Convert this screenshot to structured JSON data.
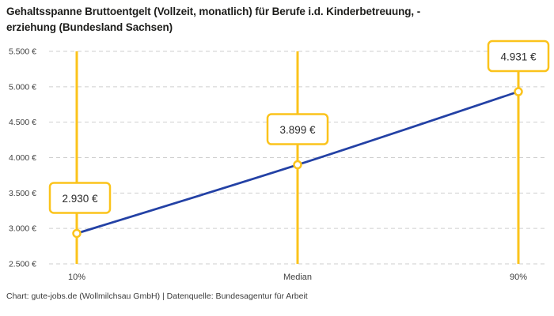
{
  "title": "Gehaltsspanne Bruttoentgelt (Vollzeit, monatlich) für Berufe i.d. Kinderbetreuung, -\nerziehung (Bundesland Sachsen)",
  "footer": "Chart: gute-jobs.de (Wollmilchsau GmbH) | Datenquelle: Bundesagentur für Arbeit",
  "chart_data": {
    "type": "line",
    "categories": [
      "10%",
      "Median",
      "90%"
    ],
    "values": [
      2930,
      3899,
      4931
    ],
    "value_labels": [
      "2.930 €",
      "3.899 €",
      "4.931 €"
    ],
    "title": "Gehaltsspanne Bruttoentgelt (Vollzeit, monatlich) für Berufe i.d. Kinderbetreuung, -erziehung (Bundesland Sachsen)",
    "xlabel": "",
    "ylabel": "",
    "ylim": [
      2500,
      5500
    ],
    "y_ticks": [
      {
        "value": 2500,
        "label": "2.500 €"
      },
      {
        "value": 3000,
        "label": "3.000 €"
      },
      {
        "value": 3500,
        "label": "3.500 €"
      },
      {
        "value": 4000,
        "label": "4.000 €"
      },
      {
        "value": 4500,
        "label": "4.500 €"
      },
      {
        "value": 5000,
        "label": "5.000 €"
      },
      {
        "value": 5500,
        "label": "5.500 €"
      }
    ],
    "grid": "horizontal-dashed",
    "legend": "none",
    "colors": {
      "accent_yellow": "#FBC31B",
      "line_blue": "#2341A5",
      "grid_gray": "#CFCFCF",
      "text_dark": "#2B2B2B",
      "text_axis": "#3F3F3F",
      "marker_fill": "#FFFFFF",
      "background": "#FFFFFF"
    }
  }
}
